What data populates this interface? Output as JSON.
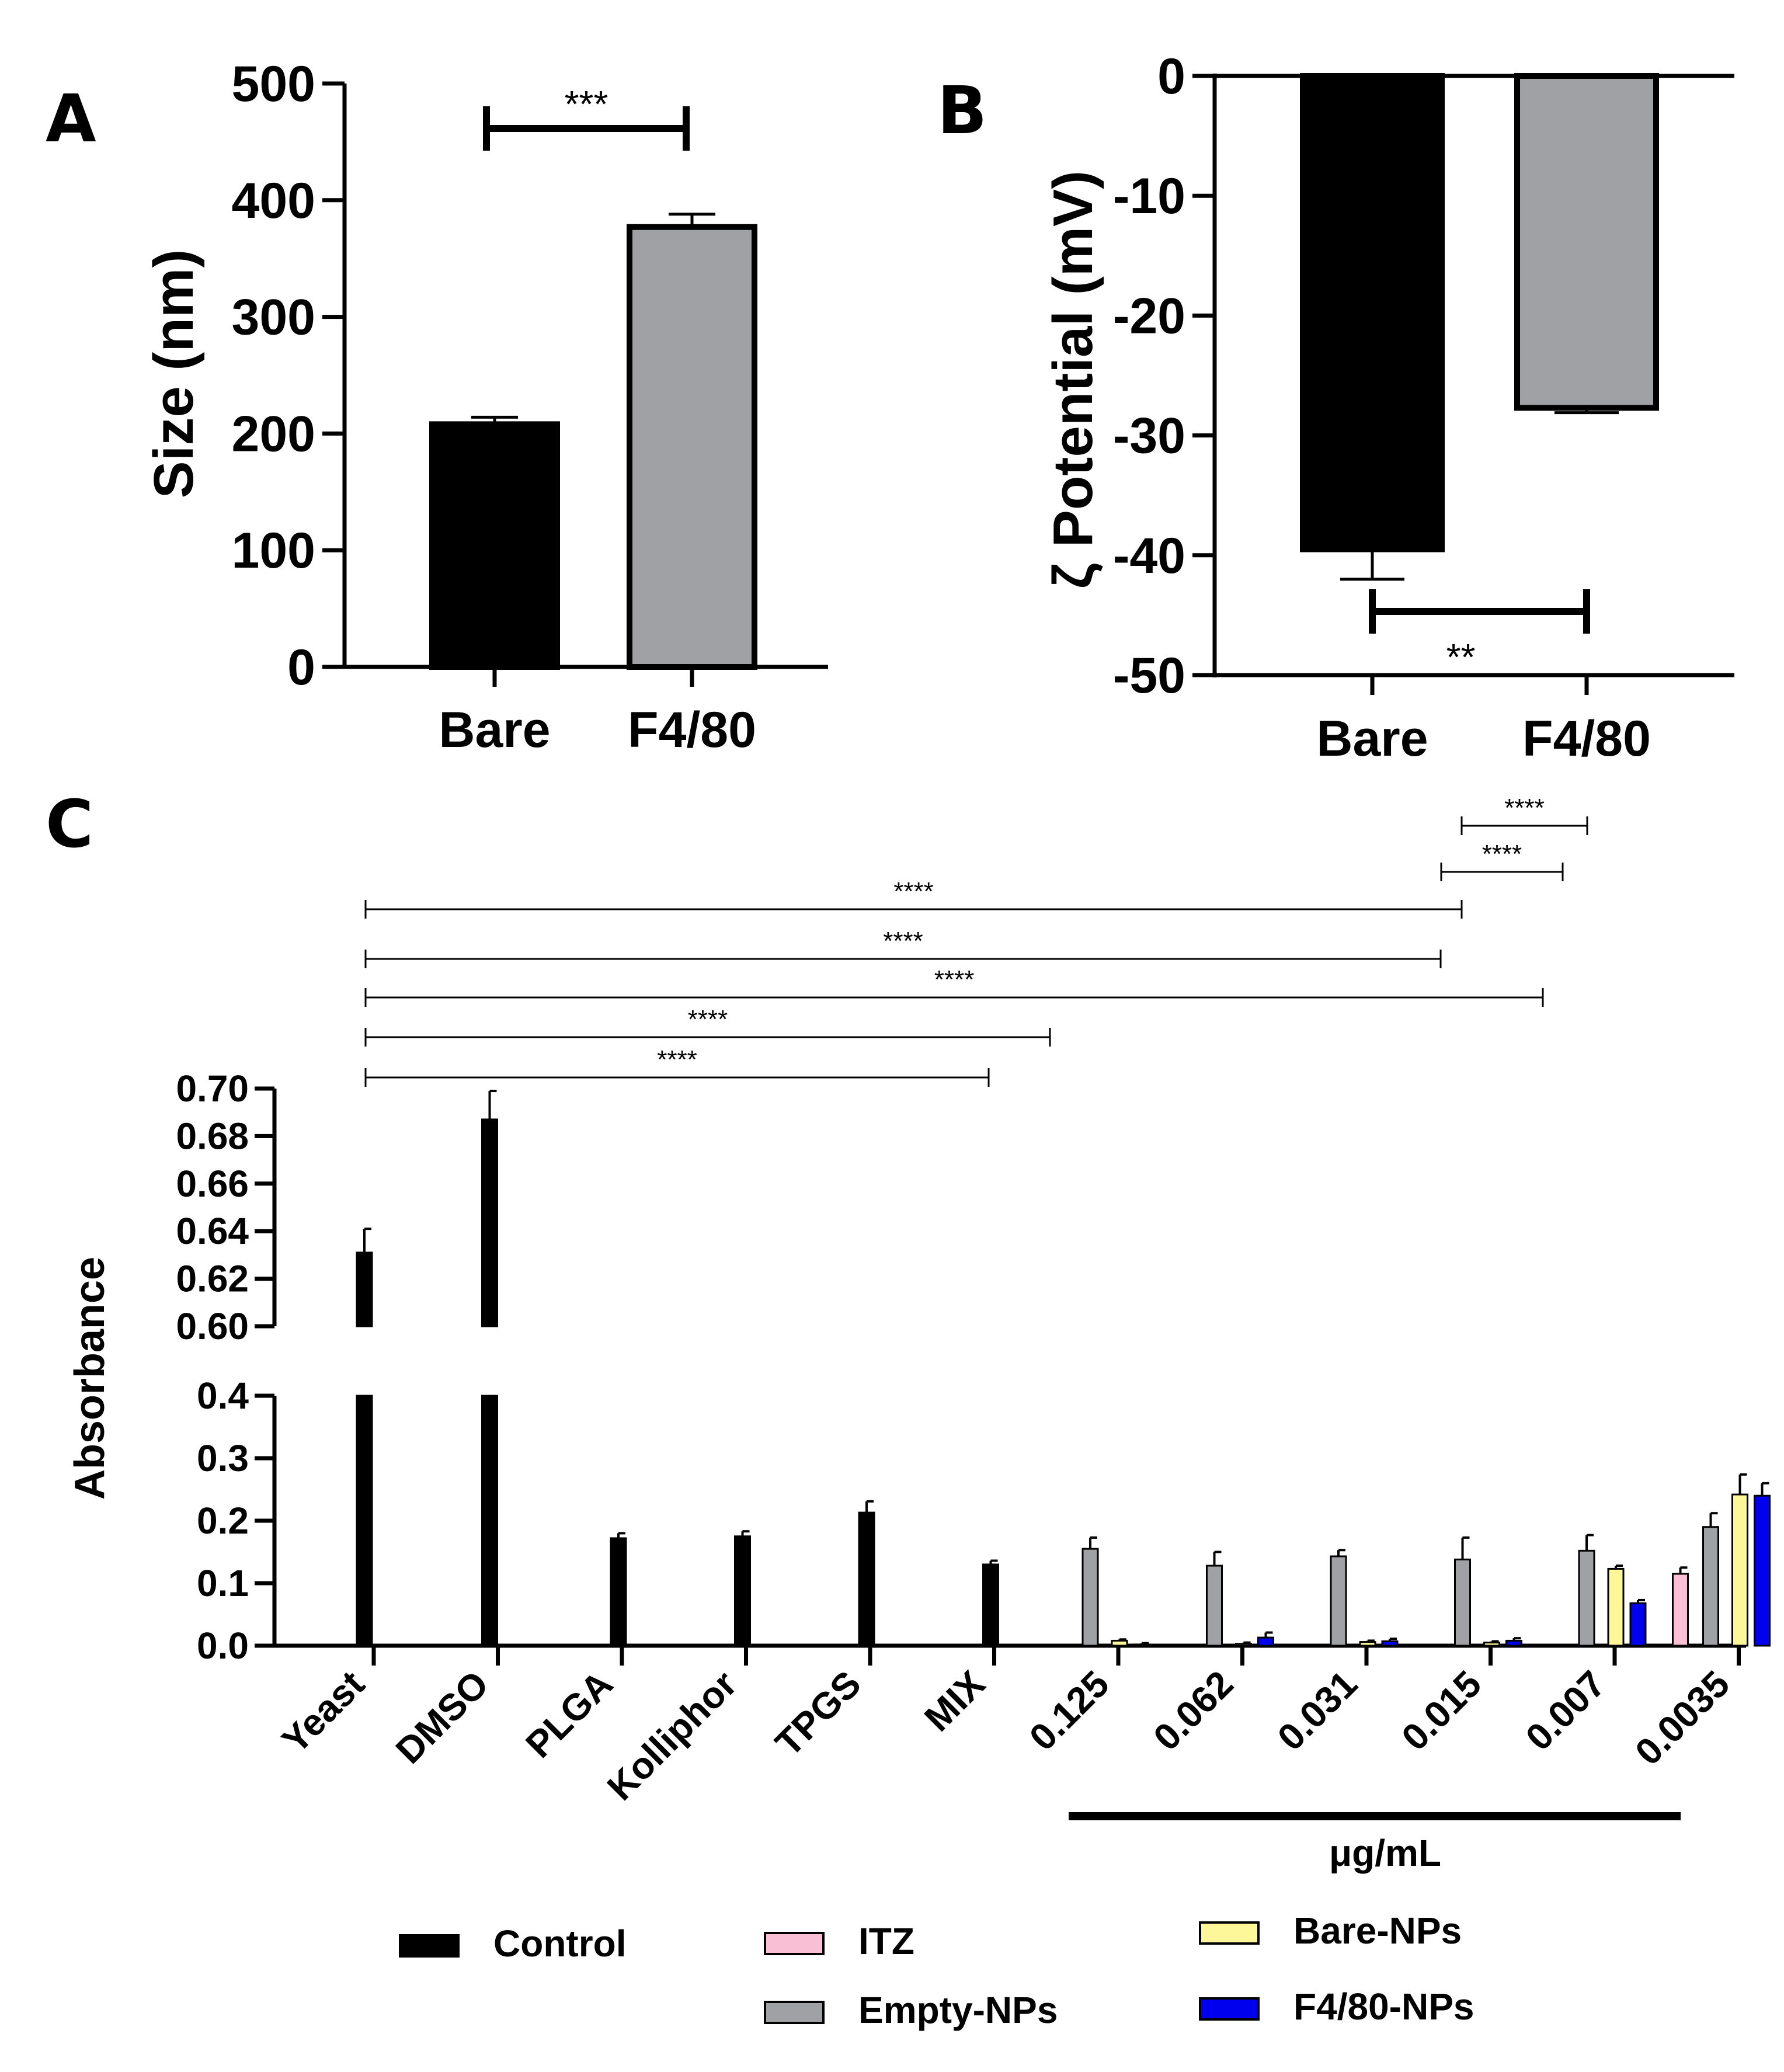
{
  "panels": {
    "A": {
      "letter": "A"
    },
    "B": {
      "letter": "B"
    },
    "C": {
      "letter": "C"
    }
  },
  "chart_data": [
    {
      "id": "A",
      "type": "bar",
      "title": "",
      "xlabel": "",
      "ylabel": "Size (nm)",
      "ylim": [
        0,
        500
      ],
      "yticks": [
        "0",
        "100",
        "200",
        "300",
        "400",
        "500"
      ],
      "categories": [
        "Bare",
        "F4/80"
      ],
      "values": [
        208,
        377
      ],
      "errors": [
        6,
        11
      ],
      "colors": [
        "#000000",
        "#a0a1a4"
      ],
      "significance": [
        {
          "from": 0,
          "to": 1,
          "label": "***"
        }
      ]
    },
    {
      "id": "B",
      "type": "bar",
      "title": "",
      "xlabel": "",
      "ylabel": "ζ Potential (mV)",
      "ylim": [
        -50,
        0
      ],
      "yticks": [
        "-50",
        "-40",
        "-30",
        "-20",
        "-10",
        "0"
      ],
      "categories": [
        "Bare",
        "F4/80"
      ],
      "values": [
        -39.5,
        -27.7
      ],
      "errors": [
        2.5,
        0.4
      ],
      "colors": [
        "#000000",
        "#a0a1a4"
      ],
      "significance": [
        {
          "from": 0,
          "to": 1,
          "label": "**"
        }
      ]
    },
    {
      "id": "C",
      "type": "bar",
      "title": "",
      "ylabel": "Absorbance",
      "xlabel_group": "μg/mL",
      "ylim_lower": [
        0,
        0.4
      ],
      "ylim_upper": [
        0.6,
        0.7
      ],
      "yticks_lower": [
        "0.0",
        "0.1",
        "0.2",
        "0.3",
        "0.4"
      ],
      "yticks_upper": [
        "0.60",
        "0.62",
        "0.64",
        "0.66",
        "0.68",
        "0.70"
      ],
      "categories": [
        "Yeast",
        "DMSO",
        "PLGA",
        "Kolliphor",
        "TPGS",
        "MIX",
        "0.125",
        "0.062",
        "0.031",
        "0.015",
        "0.007",
        "0.0035"
      ],
      "series": [
        {
          "name": "Control",
          "color": "#000000",
          "values": [
            0.631,
            0.687,
            0.172,
            0.175,
            0.213,
            0.13,
            null,
            null,
            null,
            null,
            null,
            null
          ],
          "errors": [
            0.01,
            0.012,
            0.008,
            0.008,
            0.018,
            0.006,
            null,
            null,
            null,
            null,
            null,
            null
          ]
        },
        {
          "name": "ITZ",
          "color": "#f9c0d5",
          "values": [
            null,
            null,
            null,
            null,
            null,
            null,
            null,
            null,
            null,
            null,
            null,
            0.115
          ],
          "errors": [
            null,
            null,
            null,
            null,
            null,
            null,
            null,
            null,
            null,
            null,
            null,
            0.01
          ]
        },
        {
          "name": "Empty-NPs",
          "color": "#a0a1a4",
          "values": [
            null,
            null,
            null,
            null,
            null,
            null,
            0.155,
            0.128,
            0.143,
            0.138,
            0.152,
            0.19
          ],
          "errors": [
            null,
            null,
            null,
            null,
            null,
            null,
            0.018,
            0.022,
            0.01,
            0.035,
            0.025,
            0.022
          ]
        },
        {
          "name": "Bare-NPs",
          "color": "#fdf79a",
          "values": [
            null,
            null,
            null,
            null,
            null,
            null,
            0.008,
            0.003,
            0.006,
            0.005,
            0.123,
            0.242
          ],
          "errors": [
            null,
            null,
            null,
            null,
            null,
            null,
            0.002,
            0.002,
            0.002,
            0.002,
            0.005,
            0.032
          ]
        },
        {
          "name": "F4/80-NPs",
          "color": "#0000ee",
          "values": [
            null,
            null,
            null,
            null,
            null,
            null,
            0.002,
            0.013,
            0.007,
            0.008,
            0.068,
            0.24
          ],
          "errors": [
            null,
            null,
            null,
            null,
            null,
            null,
            0.002,
            0.008,
            0.004,
            0.004,
            0.005,
            0.02
          ]
        }
      ],
      "significance": [
        {
          "from": "Yeast",
          "to": "MIX",
          "label": "****"
        },
        {
          "from": "Yeast",
          "to": "0.125",
          "label": "****"
        },
        {
          "from": "Yeast",
          "to": "0.007",
          "label": "****"
        },
        {
          "from": "Yeast",
          "to": "0.015",
          "label": "****"
        },
        {
          "from": "Yeast",
          "to": "0.015b",
          "label": "****"
        },
        {
          "from": "0.015",
          "to": "0.007",
          "label": "****"
        },
        {
          "from": "0.015b",
          "to": "0.007b",
          "label": "****"
        }
      ],
      "legend": [
        "Control",
        "ITZ",
        "Bare-NPs",
        "Empty-NPs",
        "F4/80-NPs"
      ]
    }
  ]
}
